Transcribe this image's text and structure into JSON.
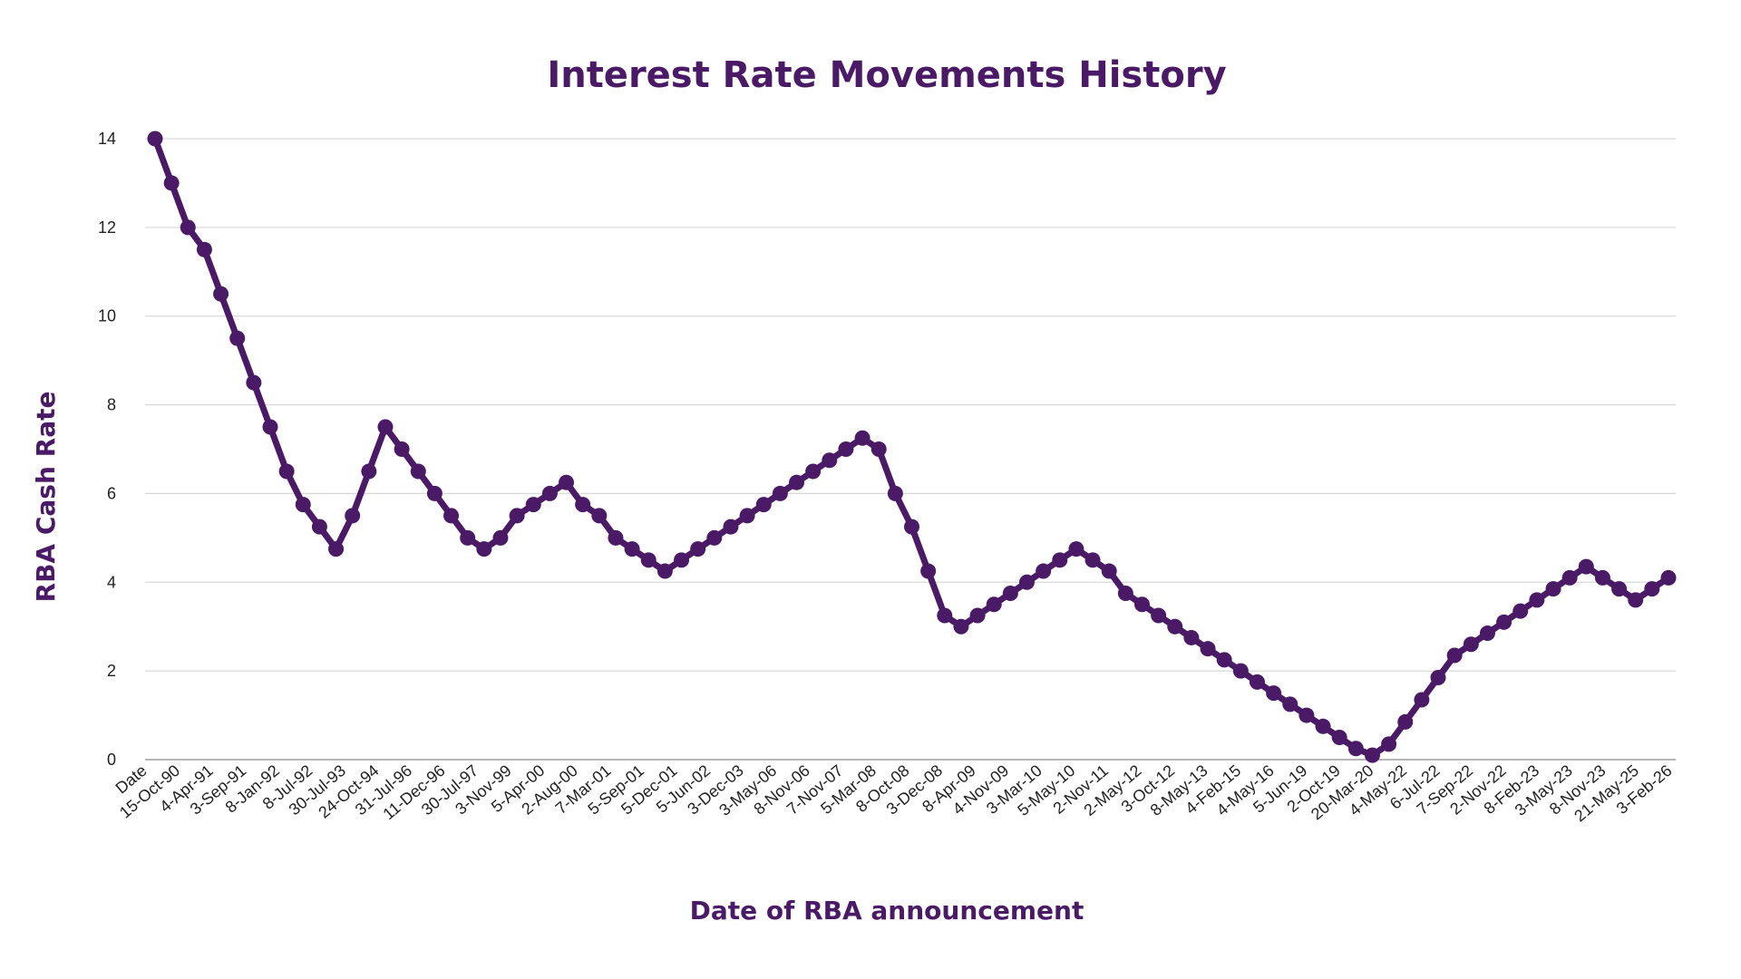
{
  "colors": {
    "series": "#4b1a66",
    "title": "#4b1a66",
    "grid": "#d9d9d9",
    "tick_text": "#222222"
  },
  "chart_data": {
    "type": "line",
    "title": "Interest Rate Movements History",
    "xlabel": "Date of RBA announcement",
    "ylabel": "RBA Cash Rate",
    "ylim": [
      0,
      14
    ],
    "yticks": [
      0,
      2,
      4,
      6,
      8,
      10,
      12,
      14
    ],
    "grid": true,
    "legend": "none",
    "marker": "circle",
    "x_tick_labels": [
      "Date",
      "15-Oct-90",
      "4-Apr-91",
      "3-Sep-91",
      "8-Jan-92",
      "8-Jul-92",
      "30-Jul-93",
      "24-Oct-94",
      "31-Jul-96",
      "11-Dec-96",
      "30-Jul-97",
      "3-Nov-99",
      "5-Apr-00",
      "2-Aug-00",
      "7-Mar-01",
      "5-Sep-01",
      "5-Dec-01",
      "5-Jun-02",
      "3-Dec-03",
      "3-May-06",
      "8-Nov-06",
      "7-Nov-07",
      "5-Mar-08",
      "8-Oct-08",
      "3-Dec-08",
      "8-Apr-09",
      "4-Nov-09",
      "3-Mar-10",
      "5-May-10",
      "2-Nov-11",
      "2-May-12",
      "3-Oct-12",
      "8-May-13",
      "4-Feb-15",
      "4-May-16",
      "5-Jun-19",
      "2-Oct-19",
      "20-Mar-20",
      "4-May-22",
      "6-Jul-22",
      "7-Sep-22",
      "2-Nov-22",
      "8-Feb-23",
      "3-May-23",
      "8-Nov-23",
      "21-May-25",
      "3-Feb-26"
    ],
    "series": [
      {
        "values": [
          14,
          13,
          12,
          11.5,
          10.5,
          9.5,
          8.5,
          7.5,
          6.5,
          5.75,
          5.25,
          4.75,
          5.5,
          6.5,
          7.5,
          7,
          6.5,
          6,
          5.5,
          5,
          4.75,
          5,
          5.5,
          5.75,
          6,
          6.25,
          5.75,
          5.5,
          5,
          4.75,
          4.5,
          4.25,
          4.5,
          4.75,
          5,
          5.25,
          5.5,
          5.75,
          6,
          6.25,
          6.5,
          6.75,
          7,
          7.25,
          7,
          6,
          5.25,
          4.25,
          3.25,
          3,
          3.25,
          3.5,
          3.75,
          4,
          4.25,
          4.5,
          4.75,
          4.5,
          4.25,
          3.75,
          3.5,
          3.25,
          3,
          2.75,
          2.5,
          2.25,
          2,
          1.75,
          1.5,
          1.25,
          1,
          0.75,
          0.5,
          0.25,
          0.1,
          0.35,
          0.85,
          1.35,
          1.85,
          2.35,
          2.6,
          2.85,
          3.1,
          3.35,
          3.6,
          3.85,
          4.1,
          4.35,
          4.1,
          3.85,
          3.6,
          3.85,
          4.1
        ]
      }
    ]
  }
}
